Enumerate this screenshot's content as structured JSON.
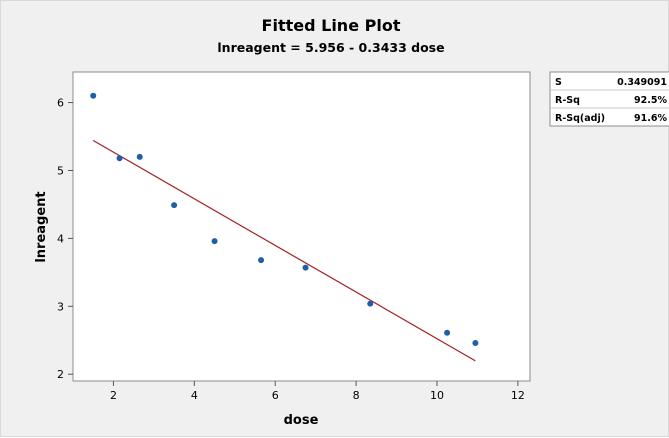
{
  "chart_data": {
    "type": "scatter",
    "title": "Fitted Line Plot",
    "subtitle": "lnreagent = 5.956 - 0.3433 dose",
    "xlabel": "dose",
    "ylabel": "lnreagent",
    "xlim": [
      1,
      12.3
    ],
    "ylim": [
      1.9,
      6.45
    ],
    "xticks": [
      2,
      4,
      6,
      8,
      10,
      12
    ],
    "yticks": [
      2,
      3,
      4,
      5,
      6
    ],
    "grid": false,
    "points": {
      "x": [
        1.5,
        2.15,
        2.65,
        3.5,
        4.5,
        5.65,
        6.75,
        8.35,
        10.25,
        10.95
      ],
      "y": [
        6.1,
        5.18,
        5.2,
        4.49,
        3.96,
        3.68,
        3.57,
        3.04,
        2.61,
        2.46
      ],
      "color": "#1f5fa8"
    },
    "fit_line": {
      "intercept": 5.956,
      "slope": -0.3433,
      "x_range": [
        1.5,
        10.95
      ],
      "color": "#a31f1f"
    },
    "stats": [
      {
        "label": "S",
        "value": "0.349091"
      },
      {
        "label": "R-Sq",
        "value": "92.5%"
      },
      {
        "label": "R-Sq(adj)",
        "value": "91.6%"
      }
    ]
  }
}
